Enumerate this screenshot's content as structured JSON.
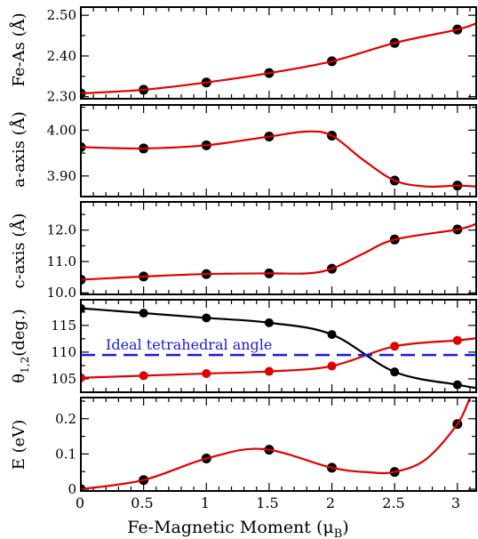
{
  "chart_data": [
    {
      "type": "scatter",
      "ylabel": "Fe-As (Å)",
      "ylim": [
        2.295,
        2.52
      ],
      "yticks": [
        2.3,
        2.4,
        2.5
      ],
      "series": [
        {
          "color": "#000000",
          "x": [
            0,
            0.5,
            1,
            1.5,
            2,
            2.5,
            3
          ],
          "y": [
            2.308,
            2.317,
            2.335,
            2.358,
            2.387,
            2.432,
            2.465
          ]
        },
        {
          "style": "line",
          "color": "#e00000",
          "x": [
            0,
            0.5,
            1,
            1.5,
            2,
            2.5,
            3,
            3.15
          ],
          "y": [
            2.308,
            2.317,
            2.335,
            2.358,
            2.387,
            2.432,
            2.465,
            2.48
          ]
        }
      ]
    },
    {
      "type": "scatter",
      "ylabel": "a-axis (Å)",
      "ylim": [
        3.855,
        4.055
      ],
      "yticks": [
        3.9,
        4.0
      ],
      "series": [
        {
          "color": "#000000",
          "x": [
            0,
            0.5,
            1,
            1.5,
            2,
            2.5,
            3
          ],
          "y": [
            3.963,
            3.96,
            3.967,
            3.986,
            3.988,
            3.89,
            3.879
          ]
        },
        {
          "style": "line",
          "color": "#e00000",
          "x": [
            0,
            0.5,
            1,
            1.5,
            1.8,
            2,
            2.25,
            2.5,
            2.75,
            3,
            3.15
          ],
          "y": [
            3.963,
            3.96,
            3.967,
            3.986,
            3.997,
            3.988,
            3.935,
            3.89,
            3.877,
            3.879,
            3.877
          ]
        }
      ]
    },
    {
      "type": "scatter",
      "ylabel": "c-axis (Å)",
      "ylim": [
        9.95,
        12.9
      ],
      "yticks": [
        10.0,
        11.0,
        12.0
      ],
      "series": [
        {
          "color": "#000000",
          "x": [
            0,
            0.5,
            1,
            1.5,
            2,
            2.5,
            3
          ],
          "y": [
            10.42,
            10.52,
            10.6,
            10.62,
            10.77,
            11.7,
            12.02
          ]
        },
        {
          "style": "line",
          "color": "#e00000",
          "x": [
            0,
            0.5,
            1,
            1.5,
            1.8,
            2,
            2.25,
            2.5,
            3,
            3.15
          ],
          "y": [
            10.42,
            10.52,
            10.6,
            10.62,
            10.62,
            10.77,
            11.25,
            11.7,
            12.02,
            12.2
          ]
        }
      ]
    },
    {
      "type": "scatter",
      "ylabel_main": "θ",
      "ylabel_sub": "1,2",
      "ylabel_rest": "(deg.)",
      "ylim": [
        102.5,
        119.8
      ],
      "yticks": [
        105,
        110,
        115
      ],
      "annotation": "Ideal tetrahedral angle",
      "reference_y": 109.47,
      "series": [
        {
          "style": "line+markers",
          "color": "#000000",
          "x": [
            0,
            0.5,
            1,
            1.5,
            2,
            2.5,
            3,
            3.15
          ],
          "y": [
            118.2,
            117.3,
            116.4,
            115.5,
            113.3,
            106.3,
            103.9,
            103.3
          ]
        },
        {
          "style": "line+markers",
          "color": "#e00000",
          "x": [
            0,
            0.5,
            1,
            1.5,
            2,
            2.5,
            3,
            3.15
          ],
          "y": [
            105.2,
            105.6,
            106.0,
            106.4,
            107.4,
            111.1,
            112.2,
            112.6
          ]
        }
      ]
    },
    {
      "type": "scatter",
      "ylabel": "E (eV)",
      "ylim": [
        -0.005,
        0.26
      ],
      "yticks": [
        0,
        0.1,
        0.2
      ],
      "series": [
        {
          "color": "#000000",
          "x": [
            0,
            0.5,
            1,
            1.5,
            2,
            2.5,
            3
          ],
          "y": [
            0.0,
            0.026,
            0.087,
            0.112,
            0.061,
            0.049,
            0.185
          ]
        },
        {
          "style": "line",
          "color": "#e00000",
          "x": [
            0,
            0.5,
            1,
            1.45,
            2,
            2.3,
            2.5,
            2.75,
            3,
            3.1
          ],
          "y": [
            0.0,
            0.026,
            0.087,
            0.114,
            0.061,
            0.048,
            0.049,
            0.085,
            0.185,
            0.26
          ]
        }
      ]
    }
  ],
  "xaxis": {
    "label_main": "Fe-Magnetic Moment (μ",
    "label_sub": "B",
    "label_end": ")",
    "xlim": [
      0,
      3.15
    ],
    "ticks": [
      0,
      0.5,
      1,
      1.5,
      2,
      2.5,
      3
    ],
    "ticklabels": [
      "0",
      "0.5",
      "1",
      "1.5",
      "2",
      "2.5",
      "3"
    ]
  }
}
